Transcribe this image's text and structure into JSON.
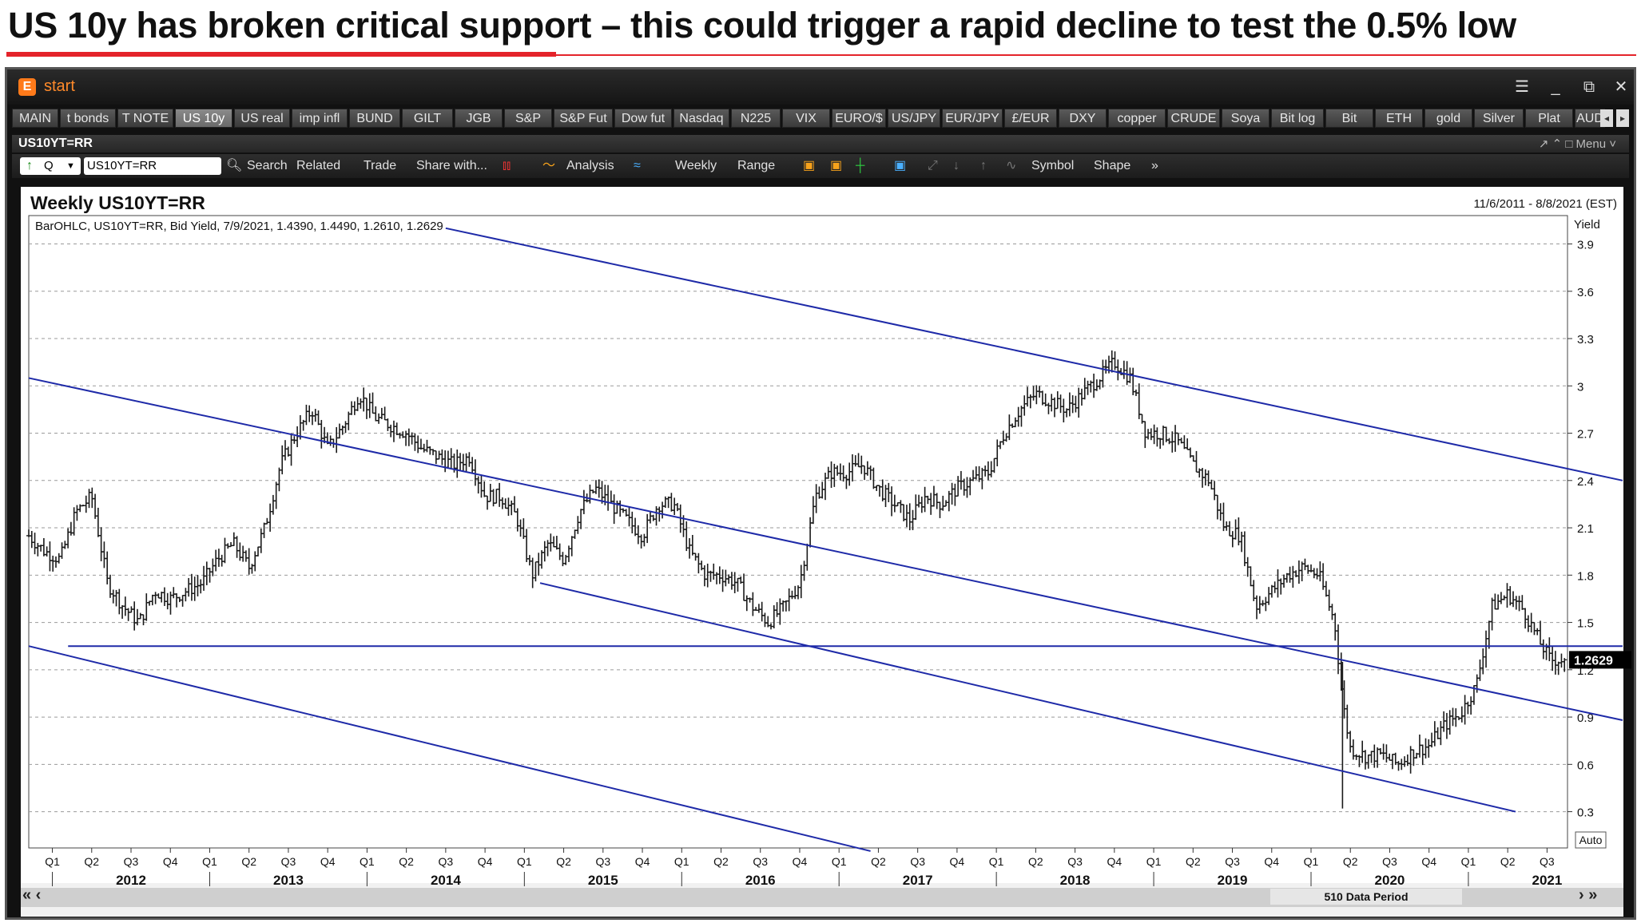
{
  "headline": "US 10y has broken critical support – this could trigger a rapid decline to test the 0.5% low",
  "app": {
    "title": "start",
    "logo": "E",
    "controls": [
      "☰",
      "_",
      "⧉",
      "✕"
    ]
  },
  "tabs": [
    "MAIN",
    "t bonds",
    "T NOTE",
    "US 10y",
    "US real",
    "imp infl",
    "BUND",
    "GILT",
    "JGB",
    "S&P",
    "S&P Fut",
    "Dow fut",
    "Nasdaq",
    "N225",
    "VIX",
    "EURO/$",
    "US/JPY",
    "EUR/JPY",
    "£/EUR",
    "DXY",
    "copper",
    "CRUDE",
    "Soya",
    "Bit log",
    "Bit",
    "ETH",
    "gold",
    "Silver",
    "Plat",
    "AUD"
  ],
  "active_tab": "US 10y",
  "panel": {
    "title": "US10YT=RR",
    "tools": "↗  ⌃  □ Menu  ˅"
  },
  "toolbar": {
    "ric": "US10YT=RR",
    "q_label": "Q",
    "search": "Search",
    "related": "Related",
    "trade": "Trade",
    "share": "Share with...",
    "analysis": "Analysis",
    "interval": "Weekly",
    "range": "Range",
    "symbol": "Symbol",
    "shape": "Shape"
  },
  "colors": {
    "price_bars": "#1a1a1a",
    "trendlines": "#1e2aa8",
    "grid": "#999999",
    "accent": "#e4232a"
  },
  "chart_data": {
    "type": "ohlc",
    "title": "Weekly US10YT=RR",
    "date_range": "11/6/2011 - 8/8/2021 (EST)",
    "legend": "BarOHLC, US10YT=RR, Bid Yield, 7/9/2021, 1.4390, 1.4490, 1.2610, 1.2629",
    "ylabel": "Yield",
    "y_ticks": [
      "3.9",
      "3.6",
      "3.3",
      "3",
      "2.7",
      "2.4",
      "2.1",
      "1.8",
      "1.5",
      "1.2",
      "0.9",
      "0.6",
      "0.3"
    ],
    "ylim": [
      0.07,
      4.08
    ],
    "last_value": "1.2629",
    "x_axis_label": "Auto",
    "data_period": "510 Data Period",
    "quarter_labels": [
      "Q1",
      "Q2",
      "Q3",
      "Q4"
    ],
    "years": [
      "2012",
      "2013",
      "2014",
      "2015",
      "2016",
      "2017",
      "2018",
      "2019",
      "2020",
      "2021"
    ],
    "grid": true,
    "series": [
      {
        "date_x": [
          2011.85,
          2011.95,
          2012.05,
          2012.15,
          2012.25,
          2012.35,
          2012.45,
          2012.55,
          2012.65,
          2012.75,
          2012.85,
          2012.95,
          2013.05,
          2013.15,
          2013.25,
          2013.35,
          2013.45,
          2013.55,
          2013.65,
          2013.75,
          2013.85,
          2013.95,
          2014.05,
          2014.15,
          2014.25,
          2014.35,
          2014.45,
          2014.55,
          2014.65,
          2014.75,
          2014.85,
          2014.95,
          2015.05,
          2015.15,
          2015.25,
          2015.35,
          2015.45,
          2015.55,
          2015.65,
          2015.75,
          2015.85,
          2015.95,
          2016.05,
          2016.15,
          2016.25,
          2016.35,
          2016.45,
          2016.55,
          2016.65,
          2016.75,
          2016.85,
          2016.95,
          2017.05,
          2017.15,
          2017.25,
          2017.35,
          2017.45,
          2017.55,
          2017.65,
          2017.75,
          2017.85,
          2017.95,
          2018.05,
          2018.15,
          2018.25,
          2018.35,
          2018.45,
          2018.55,
          2018.65,
          2018.75,
          2018.85,
          2018.95,
          2019.05,
          2019.15,
          2019.25,
          2019.35,
          2019.45,
          2019.55,
          2019.65,
          2019.75,
          2019.85,
          2019.95,
          2020.05,
          2020.15,
          2020.2,
          2020.25,
          2020.35,
          2020.45,
          2020.55,
          2020.65,
          2020.75,
          2020.85,
          2020.95,
          2021.05,
          2021.15,
          2021.25,
          2021.35,
          2021.45,
          2021.52
        ],
        "yield": [
          2.05,
          1.95,
          1.9,
          2.2,
          2.3,
          1.75,
          1.6,
          1.5,
          1.7,
          1.65,
          1.7,
          1.75,
          1.9,
          2.0,
          1.85,
          2.1,
          2.5,
          2.7,
          2.85,
          2.6,
          2.75,
          2.95,
          2.8,
          2.75,
          2.7,
          2.6,
          2.55,
          2.5,
          2.55,
          2.3,
          2.3,
          2.17,
          1.8,
          2.0,
          1.9,
          2.2,
          2.35,
          2.25,
          2.15,
          2.05,
          2.25,
          2.25,
          1.95,
          1.8,
          1.8,
          1.75,
          1.6,
          1.5,
          1.6,
          1.75,
          2.3,
          2.45,
          2.45,
          2.5,
          2.35,
          2.25,
          2.15,
          2.3,
          2.25,
          2.35,
          2.4,
          2.45,
          2.7,
          2.85,
          2.95,
          2.9,
          2.85,
          2.95,
          3.05,
          3.15,
          3.05,
          2.7,
          2.7,
          2.65,
          2.5,
          2.4,
          2.1,
          2.05,
          1.6,
          1.7,
          1.8,
          1.85,
          1.8,
          1.5,
          1.0,
          0.7,
          0.65,
          0.66,
          0.6,
          0.68,
          0.72,
          0.85,
          0.92,
          1.1,
          1.6,
          1.68,
          1.58,
          1.38,
          1.2629
        ]
      }
    ],
    "trendlines": [
      {
        "name": "upper-channel-line",
        "from": [
          2014.5,
          4.0
        ],
        "to": [
          2021.98,
          2.4
        ]
      },
      {
        "name": "middle-channel-line",
        "from": [
          2011.85,
          3.05
        ],
        "to": [
          2021.98,
          0.88
        ]
      },
      {
        "name": "lower-channel-line",
        "from": [
          2015.1,
          1.75
        ],
        "to": [
          2021.3,
          0.3
        ]
      },
      {
        "name": "bottom-channel-line",
        "from": [
          2011.85,
          1.35
        ],
        "to": [
          2017.2,
          0.05
        ]
      },
      {
        "name": "support-line",
        "from": [
          2012.1,
          1.35
        ],
        "to": [
          2021.98,
          1.35
        ]
      }
    ]
  }
}
